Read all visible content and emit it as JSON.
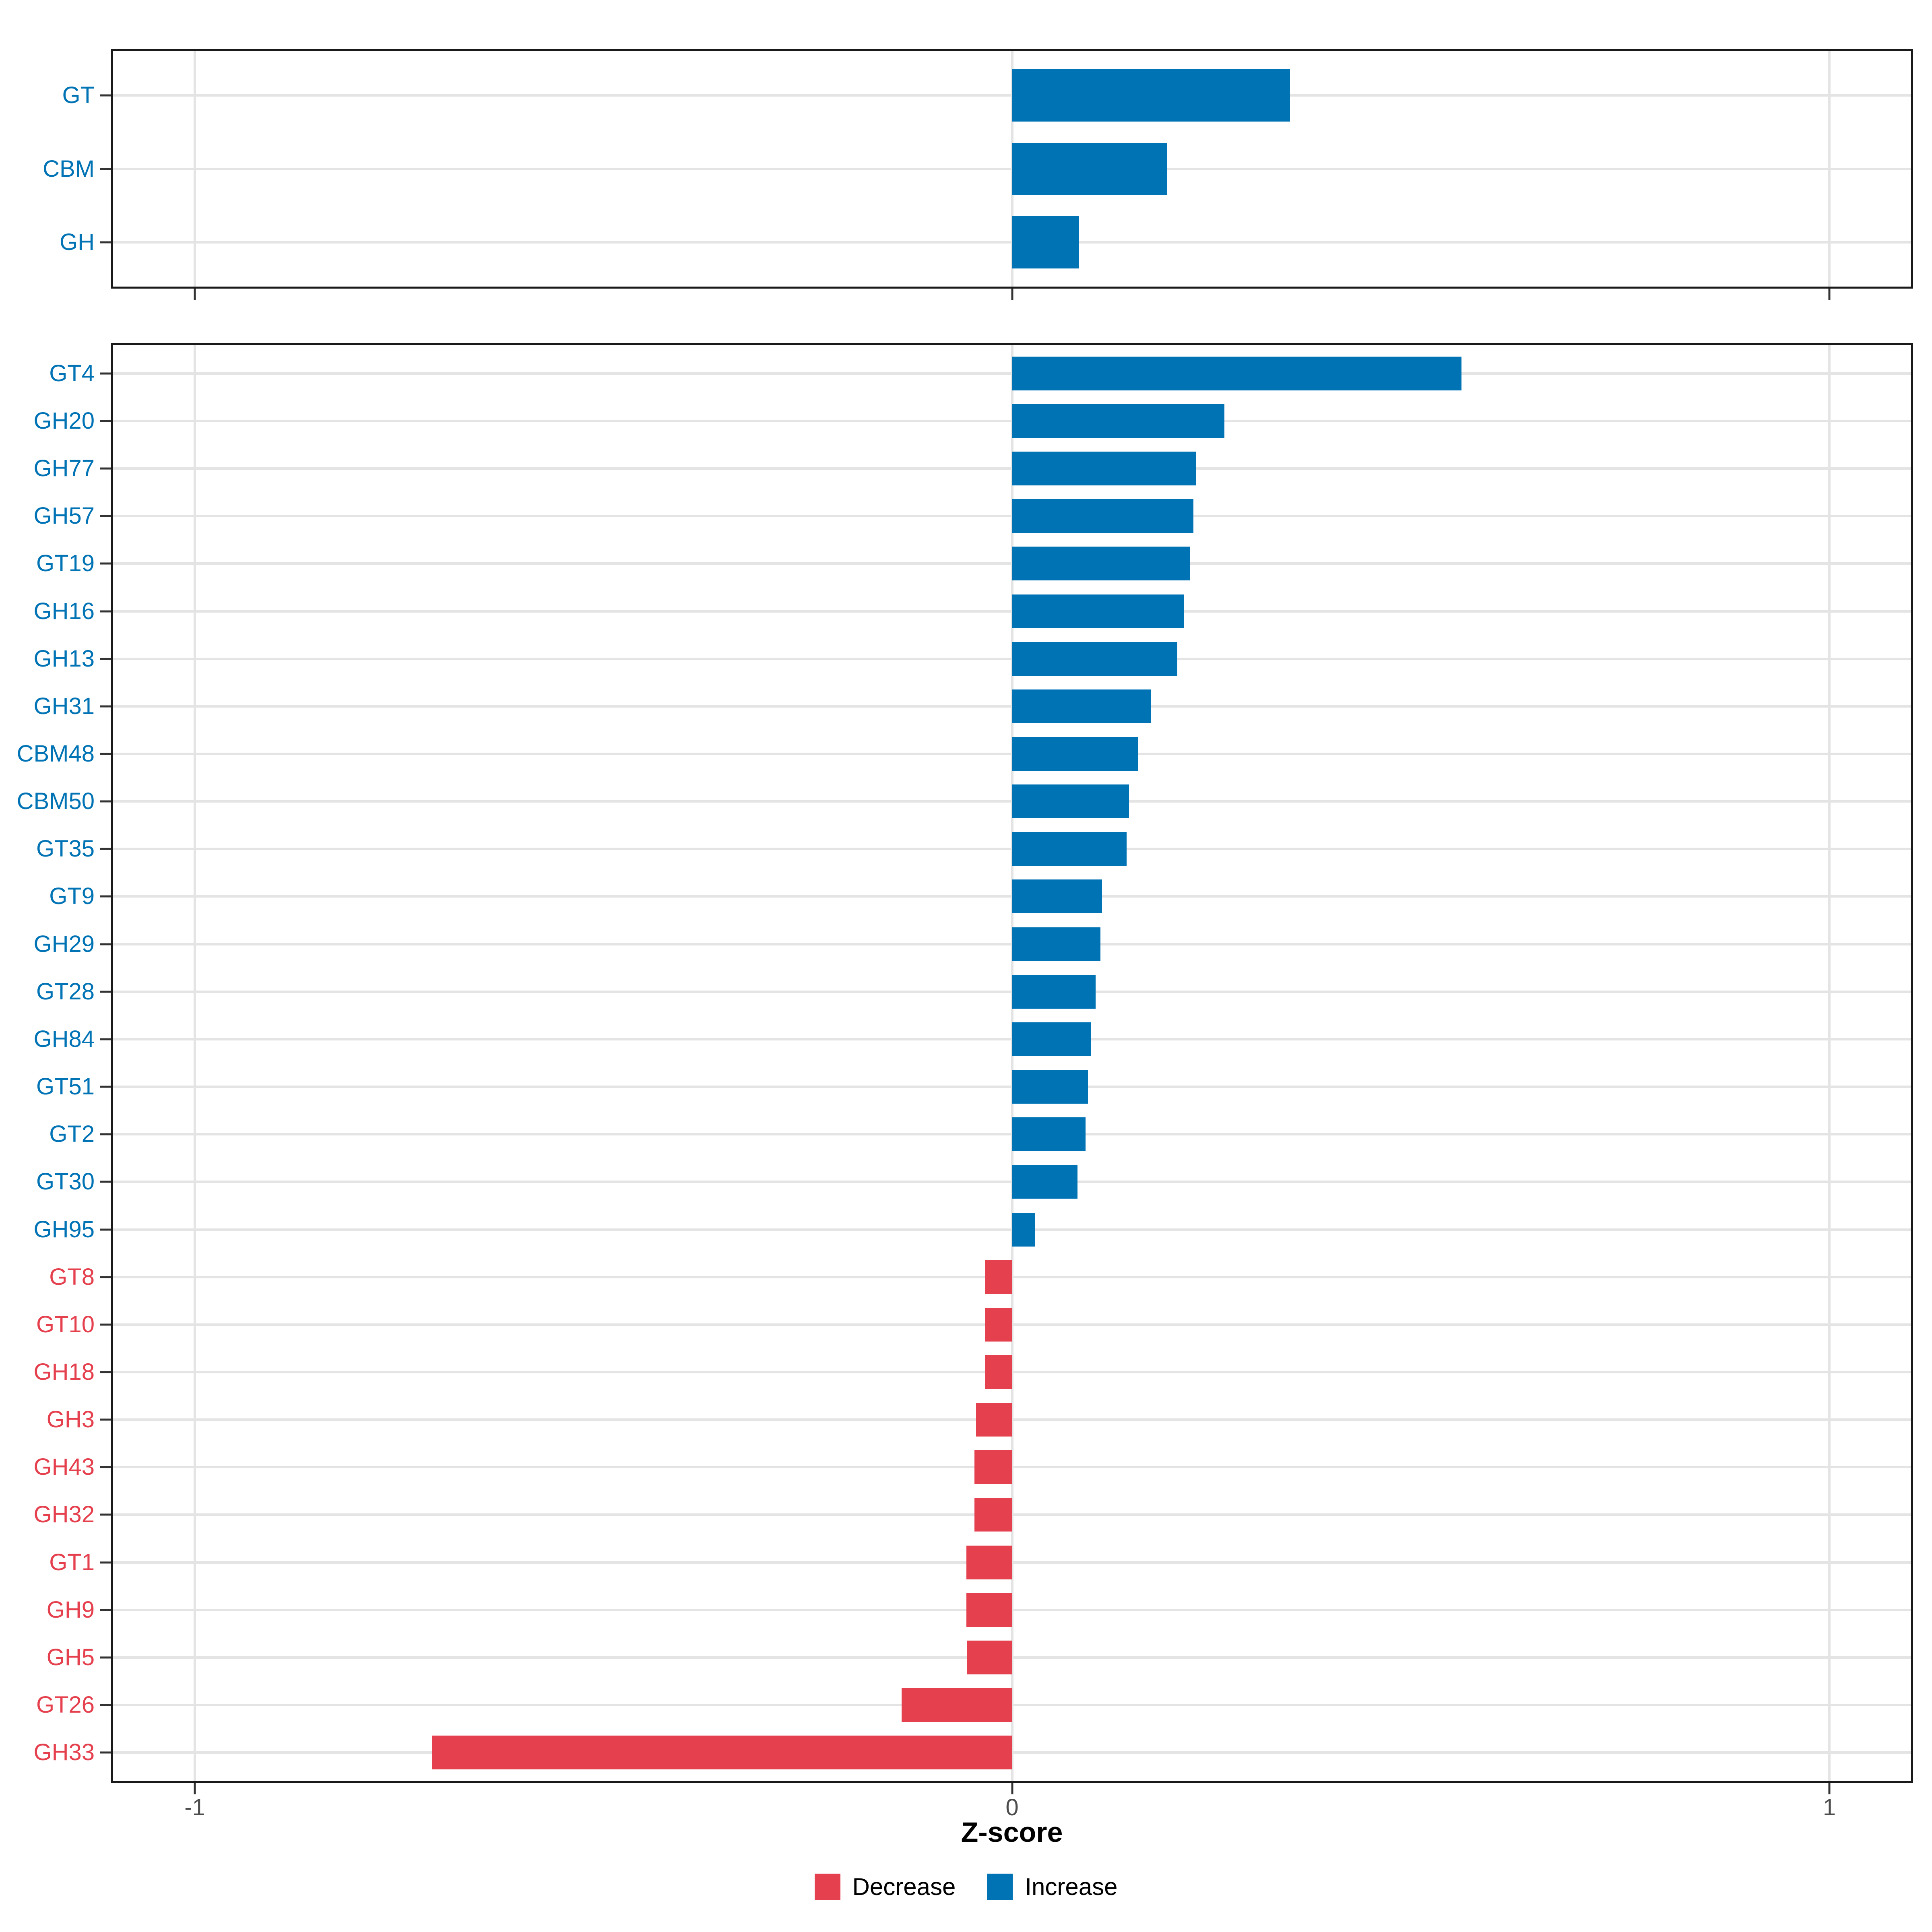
{
  "figure": {
    "axis": {
      "xlabel": "Z-score",
      "ticks": [
        "-1",
        "0",
        "1"
      ],
      "tick_values": [
        -1,
        0,
        1
      ],
      "xlim": [
        -1.1,
        1.1
      ]
    },
    "legend": {
      "items": [
        {
          "label": "Decrease",
          "color": "#E5404E"
        },
        {
          "label": "Increase",
          "color": "#0073B5"
        }
      ]
    },
    "colors": {
      "increase": "#0073B5",
      "decrease": "#E5404E",
      "gridline": "#E4E4E4",
      "panel_border": "#1A1A1A",
      "tick": "#333333",
      "tick_label_text": "#4D4D4D",
      "axis_title_text": "#000000",
      "background": "#FFFFFF"
    }
  },
  "chart_data": [
    {
      "type": "bar",
      "orientation": "horizontal",
      "panel": "top",
      "title": "",
      "xlabel": "Z-score",
      "xlim": [
        -1.1,
        1.1
      ],
      "grid": true,
      "legend_position": "bottom",
      "categories": [
        "GT",
        "CBM",
        "GH"
      ],
      "values": [
        0.34,
        0.19,
        0.082
      ]
    },
    {
      "type": "bar",
      "orientation": "horizontal",
      "panel": "bottom",
      "title": "",
      "xlabel": "Z-score",
      "xlim": [
        -1.1,
        1.1
      ],
      "grid": true,
      "legend_position": "bottom",
      "categories": [
        "GT4",
        "GH20",
        "GH77",
        "GH57",
        "GT19",
        "GH16",
        "GH13",
        "GH31",
        "CBM48",
        "CBM50",
        "GT35",
        "GT9",
        "GH29",
        "GT28",
        "GH84",
        "GT51",
        "GT2",
        "GT30",
        "GH95",
        "GT8",
        "GT10",
        "GH18",
        "GH3",
        "GH43",
        "GH32",
        "GT1",
        "GH9",
        "GH5",
        "GT26",
        "GH33"
      ],
      "values": [
        0.55,
        0.26,
        0.225,
        0.222,
        0.218,
        0.21,
        0.202,
        0.17,
        0.154,
        0.143,
        0.14,
        0.11,
        0.108,
        0.102,
        0.097,
        0.093,
        0.09,
        0.08,
        0.028,
        -0.033,
        -0.033,
        -0.033,
        -0.044,
        -0.046,
        -0.046,
        -0.056,
        -0.056,
        -0.055,
        -0.135,
        -0.71
      ]
    }
  ]
}
